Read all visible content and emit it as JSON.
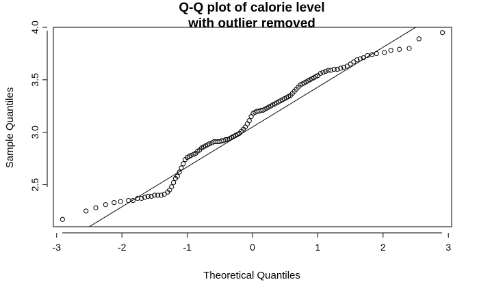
{
  "chart_data": {
    "type": "scatter",
    "title": [
      "Q-Q plot of calorie level",
      "with outlier removed"
    ],
    "xlabel": "Theoretical Quantiles",
    "ylabel": "Sample Quantiles",
    "xlim": [
      -3.05,
      3.05
    ],
    "ylim": [
      2.1,
      4.0
    ],
    "xticks": [
      -3,
      -2,
      -1,
      0,
      1,
      2,
      3
    ],
    "xtick_labels": [
      "-3",
      "-2",
      "-1",
      "0",
      "1",
      "2",
      "3"
    ],
    "yticks": [
      2.5,
      3.0,
      3.5,
      4.0
    ],
    "ytick_labels": [
      "2.5",
      "3.0",
      "3.5",
      "4.0"
    ],
    "grid": false,
    "legend": "none",
    "marker": "open-circle",
    "reference_line": {
      "intercept": 3.05,
      "slope": 0.38
    },
    "points": [
      [
        -2.91,
        2.17
      ],
      [
        -2.55,
        2.25
      ],
      [
        -2.4,
        2.28
      ],
      [
        -2.25,
        2.31
      ],
      [
        -2.12,
        2.33
      ],
      [
        -2.02,
        2.34
      ],
      [
        -1.9,
        2.35
      ],
      [
        -1.83,
        2.35
      ],
      [
        -1.76,
        2.37
      ],
      [
        -1.7,
        2.37
      ],
      [
        -1.65,
        2.38
      ],
      [
        -1.6,
        2.39
      ],
      [
        -1.55,
        2.39
      ],
      [
        -1.5,
        2.4
      ],
      [
        -1.45,
        2.4
      ],
      [
        -1.4,
        2.4
      ],
      [
        -1.35,
        2.41
      ],
      [
        -1.3,
        2.43
      ],
      [
        -1.27,
        2.45
      ],
      [
        -1.24,
        2.48
      ],
      [
        -1.21,
        2.52
      ],
      [
        -1.18,
        2.56
      ],
      [
        -1.15,
        2.58
      ],
      [
        -1.12,
        2.62
      ],
      [
        -1.09,
        2.66
      ],
      [
        -1.06,
        2.7
      ],
      [
        -1.03,
        2.74
      ],
      [
        -1.0,
        2.76
      ],
      [
        -0.97,
        2.77
      ],
      [
        -0.94,
        2.78
      ],
      [
        -0.9,
        2.79
      ],
      [
        -0.87,
        2.8
      ],
      [
        -0.84,
        2.82
      ],
      [
        -0.81,
        2.83
      ],
      [
        -0.78,
        2.85
      ],
      [
        -0.75,
        2.86
      ],
      [
        -0.72,
        2.87
      ],
      [
        -0.69,
        2.88
      ],
      [
        -0.66,
        2.89
      ],
      [
        -0.62,
        2.9
      ],
      [
        -0.59,
        2.91
      ],
      [
        -0.56,
        2.91
      ],
      [
        -0.53,
        2.91
      ],
      [
        -0.5,
        2.91
      ],
      [
        -0.47,
        2.92
      ],
      [
        -0.44,
        2.92
      ],
      [
        -0.41,
        2.93
      ],
      [
        -0.38,
        2.93
      ],
      [
        -0.35,
        2.94
      ],
      [
        -0.32,
        2.95
      ],
      [
        -0.29,
        2.96
      ],
      [
        -0.26,
        2.97
      ],
      [
        -0.23,
        2.98
      ],
      [
        -0.2,
        2.99
      ],
      [
        -0.17,
        3.01
      ],
      [
        -0.14,
        3.03
      ],
      [
        -0.11,
        3.05
      ],
      [
        -0.08,
        3.08
      ],
      [
        -0.05,
        3.11
      ],
      [
        -0.02,
        3.15
      ],
      [
        0.01,
        3.18
      ],
      [
        0.04,
        3.19
      ],
      [
        0.07,
        3.2
      ],
      [
        0.1,
        3.2
      ],
      [
        0.13,
        3.21
      ],
      [
        0.16,
        3.21
      ],
      [
        0.19,
        3.22
      ],
      [
        0.22,
        3.23
      ],
      [
        0.25,
        3.24
      ],
      [
        0.28,
        3.25
      ],
      [
        0.31,
        3.26
      ],
      [
        0.34,
        3.27
      ],
      [
        0.37,
        3.28
      ],
      [
        0.4,
        3.29
      ],
      [
        0.43,
        3.3
      ],
      [
        0.46,
        3.31
      ],
      [
        0.49,
        3.32
      ],
      [
        0.52,
        3.33
      ],
      [
        0.55,
        3.34
      ],
      [
        0.58,
        3.35
      ],
      [
        0.61,
        3.37
      ],
      [
        0.64,
        3.39
      ],
      [
        0.67,
        3.41
      ],
      [
        0.7,
        3.43
      ],
      [
        0.73,
        3.45
      ],
      [
        0.76,
        3.46
      ],
      [
        0.79,
        3.47
      ],
      [
        0.82,
        3.48
      ],
      [
        0.85,
        3.49
      ],
      [
        0.88,
        3.5
      ],
      [
        0.91,
        3.51
      ],
      [
        0.94,
        3.52
      ],
      [
        0.97,
        3.53
      ],
      [
        1.0,
        3.54
      ],
      [
        1.04,
        3.56
      ],
      [
        1.08,
        3.57
      ],
      [
        1.12,
        3.58
      ],
      [
        1.16,
        3.59
      ],
      [
        1.2,
        3.59
      ],
      [
        1.25,
        3.6
      ],
      [
        1.3,
        3.6
      ],
      [
        1.35,
        3.61
      ],
      [
        1.4,
        3.62
      ],
      [
        1.45,
        3.63
      ],
      [
        1.5,
        3.65
      ],
      [
        1.55,
        3.67
      ],
      [
        1.6,
        3.69
      ],
      [
        1.65,
        3.7
      ],
      [
        1.7,
        3.71
      ],
      [
        1.76,
        3.73
      ],
      [
        1.83,
        3.74
      ],
      [
        1.9,
        3.75
      ],
      [
        2.02,
        3.76
      ],
      [
        2.12,
        3.78
      ],
      [
        2.25,
        3.79
      ],
      [
        2.4,
        3.8
      ],
      [
        2.55,
        3.89
      ],
      [
        2.91,
        3.95
      ]
    ]
  }
}
